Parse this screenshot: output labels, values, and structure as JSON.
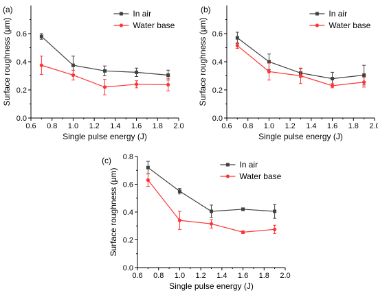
{
  "chart_data": [
    {
      "type": "line",
      "panel_label": "(a)",
      "xlabel": "Single pulse energy (J)",
      "ylabel": "Surface roughness (μm)",
      "xlim": [
        0.6,
        2.0
      ],
      "ylim": [
        0.0,
        0.8
      ],
      "xticks": [
        "0.6",
        "0.8",
        "1.0",
        "1.2",
        "1.4",
        "1.6",
        "1.8",
        "2.0"
      ],
      "yticks": [
        "0.0",
        "0.2",
        "0.4",
        "0.6"
      ],
      "x": [
        0.7,
        1.0,
        1.3,
        1.6,
        1.9
      ],
      "legend_position": "top-right",
      "grid": false,
      "series": [
        {
          "name": "In air",
          "color": "#404040",
          "marker": "square",
          "values": [
            0.58,
            0.375,
            0.335,
            0.325,
            0.305
          ],
          "errors": [
            0.02,
            0.065,
            0.035,
            0.03,
            0.035
          ]
        },
        {
          "name": "Water base",
          "color": "#ff3333",
          "marker": "circle",
          "values": [
            0.375,
            0.305,
            0.22,
            0.24,
            0.237
          ],
          "errors": [
            0.065,
            0.035,
            0.055,
            0.025,
            0.045
          ]
        }
      ]
    },
    {
      "type": "line",
      "panel_label": "(b)",
      "xlabel": "Single pulse energy (J)",
      "ylabel": "Surface roughness (μm)",
      "xlim": [
        0.6,
        2.0
      ],
      "ylim": [
        0.0,
        0.8
      ],
      "xticks": [
        "0.6",
        "0.8",
        "1.0",
        "1.2",
        "1.4",
        "1.6",
        "1.8",
        "2.0"
      ],
      "yticks": [
        "0.0",
        "0.2",
        "0.4",
        "0.6"
      ],
      "x": [
        0.7,
        1.0,
        1.3,
        1.6,
        1.9
      ],
      "legend_position": "top-right",
      "grid": false,
      "series": [
        {
          "name": "In air",
          "color": "#404040",
          "marker": "square",
          "values": [
            0.57,
            0.4,
            0.32,
            0.28,
            0.305
          ],
          "errors": [
            0.04,
            0.055,
            0.03,
            0.045,
            0.07
          ]
        },
        {
          "name": "Water base",
          "color": "#ff3333",
          "marker": "circle",
          "values": [
            0.515,
            0.33,
            0.3,
            0.23,
            0.255
          ],
          "errors": [
            0.02,
            0.06,
            0.055,
            0.015,
            0.035
          ]
        }
      ]
    },
    {
      "type": "line",
      "panel_label": "(c)",
      "xlabel": "Single pulse energy (J)",
      "ylabel": "Surface roughness (μm)",
      "xlim": [
        0.6,
        2.0
      ],
      "ylim": [
        0.0,
        0.8
      ],
      "xticks": [
        "0.6",
        "0.8",
        "1.0",
        "1.2",
        "1.4",
        "1.6",
        "1.8",
        "2.0"
      ],
      "yticks": [
        "0.0",
        "0.2",
        "0.4",
        "0.6",
        "0.8"
      ],
      "x": [
        0.7,
        1.0,
        1.3,
        1.6,
        1.9
      ],
      "legend_position": "top-right",
      "grid": false,
      "series": [
        {
          "name": "In air",
          "color": "#404040",
          "marker": "square",
          "values": [
            0.72,
            0.55,
            0.405,
            0.42,
            0.405
          ],
          "errors": [
            0.045,
            0.02,
            0.045,
            0.01,
            0.05
          ]
        },
        {
          "name": "Water base",
          "color": "#ff3333",
          "marker": "circle",
          "values": [
            0.63,
            0.34,
            0.315,
            0.255,
            0.275
          ],
          "errors": [
            0.045,
            0.065,
            0.03,
            0.01,
            0.03
          ]
        }
      ]
    }
  ]
}
